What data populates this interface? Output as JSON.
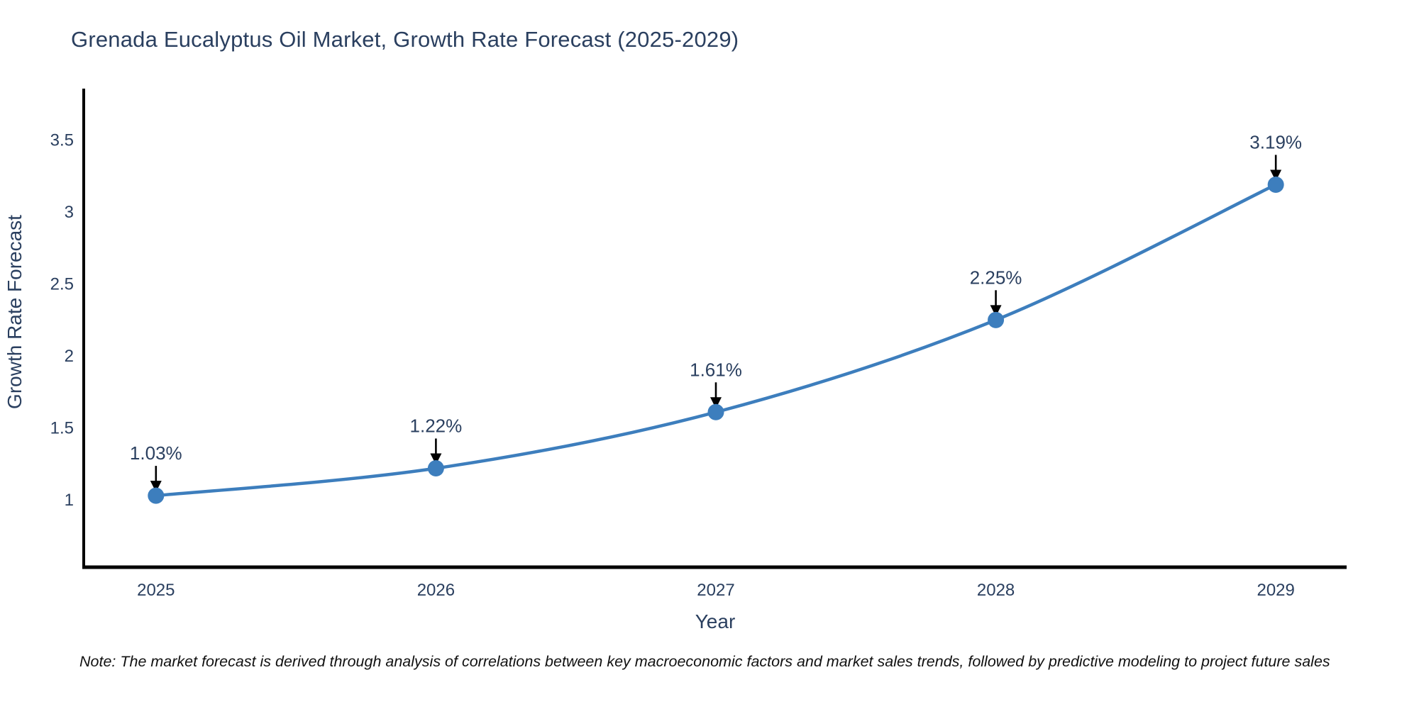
{
  "chart_data": {
    "type": "line",
    "title": "Grenada Eucalyptus Oil Market, Growth Rate Forecast (2025-2029)",
    "xlabel": "Year",
    "ylabel": "Growth Rate Forecast",
    "x": [
      2025,
      2026,
      2027,
      2028,
      2029
    ],
    "series": [
      {
        "name": "Growth Rate Forecast",
        "values": [
          1.03,
          1.22,
          1.61,
          2.25,
          3.19
        ],
        "point_labels": [
          "1.03%",
          "1.22%",
          "1.61%",
          "2.25%",
          "3.19%"
        ]
      }
    ],
    "x_tick_labels": [
      "2025",
      "2026",
      "2027",
      "2028",
      "2029"
    ],
    "y_ticks": [
      1,
      1.5,
      2,
      2.5,
      3,
      3.5
    ],
    "y_tick_labels": [
      "1",
      "1.5",
      "2",
      "2.5",
      "3",
      "3.5"
    ],
    "xlim": [
      2024.742,
      2029.253
    ],
    "ylim": [
      0.533,
      3.857
    ],
    "grid": false,
    "legend_position": "none",
    "line_shape": "spline",
    "annotation_arrows": true,
    "note": "Note: The market forecast is derived through analysis of correlations between key macroeconomic factors and market sales trends, followed by predictive modeling to project future sales"
  },
  "colors": {
    "line": "#3d7ebd",
    "marker": "#3d7ebd",
    "axis": "#000000",
    "text": "#2a3f5f",
    "annotation_text": "#2a3f5f",
    "arrow": "#000000",
    "background": "#ffffff",
    "note_text": "#111111"
  }
}
